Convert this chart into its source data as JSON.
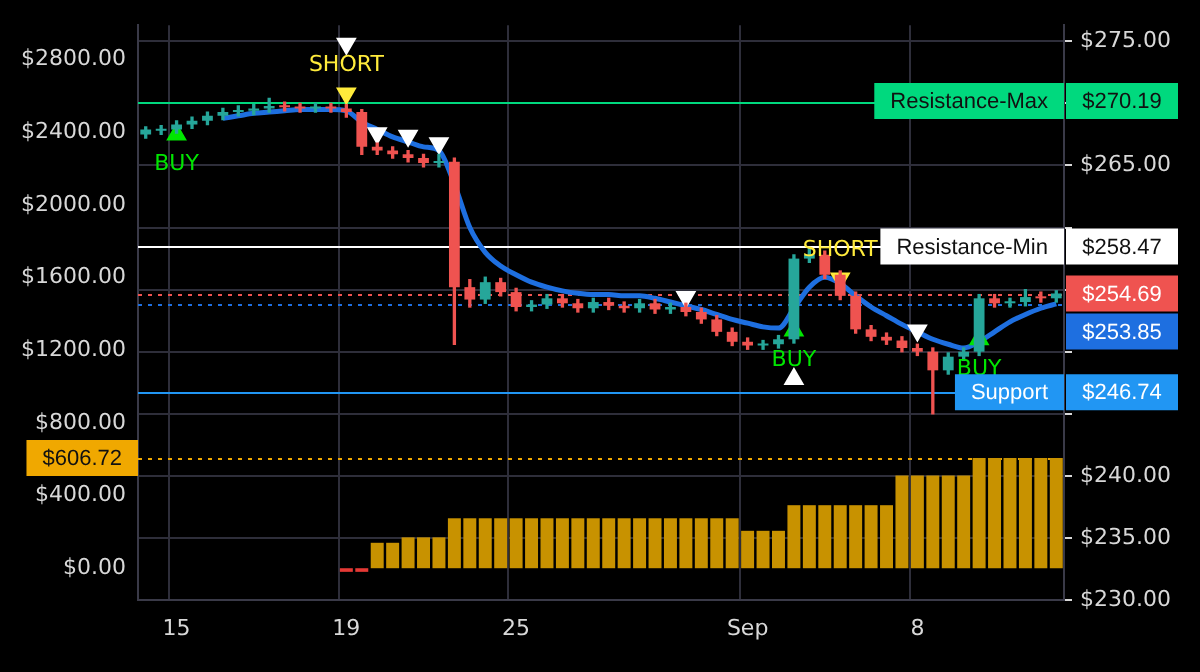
{
  "chart_data": {
    "type": "candlestick",
    "categories": [
      null,
      null,
      "15",
      null,
      null,
      null,
      null,
      null,
      null,
      null,
      null,
      null,
      null,
      "19",
      null,
      null,
      null,
      null,
      null,
      null,
      null,
      null,
      null,
      null,
      "25",
      null,
      null,
      null,
      null,
      null,
      null,
      null,
      null,
      null,
      null,
      null,
      null,
      null,
      null,
      "Sep",
      null,
      null,
      null,
      null,
      null,
      null,
      null,
      null,
      null,
      null,
      "8",
      null,
      null,
      null,
      null,
      null,
      null,
      null,
      null,
      null
    ],
    "series": [
      {
        "type": "bar",
        "axis": "y",
        "colors": [
          "#c89200",
          "#c89200",
          "#c89200",
          "#c89200",
          "#c89200",
          "#c89200",
          "#c89200",
          "#c89200",
          "#c89200",
          "#c89200",
          "#c89200",
          "#c89200",
          "#c89200",
          "#e53935",
          "#e53935",
          "#c89200",
          "#c89200",
          "#c89200",
          "#c89200",
          "#c89200",
          "#c89200",
          "#c89200",
          "#c89200",
          "#c89200",
          "#c89200",
          "#c89200",
          "#c89200",
          "#c89200",
          "#c89200",
          "#c89200",
          "#c89200",
          "#c89200",
          "#c89200",
          "#c89200",
          "#c89200",
          "#c89200",
          "#c89200",
          "#c89200",
          "#c89200",
          "#c89200",
          "#c89200",
          "#c89200",
          "#c89200",
          "#c89200",
          "#c89200",
          "#c89200",
          "#c89200",
          "#c89200",
          "#c89200",
          "#c89200",
          "#c89200",
          "#c89200",
          "#c89200",
          "#c89200",
          "#c89200",
          "#c89200",
          "#c89200",
          "#c89200",
          "#c89200",
          "#c89200"
        ],
        "values": [
          0,
          0,
          0,
          0,
          0,
          0,
          0,
          0,
          0,
          0,
          0,
          0,
          0,
          -20,
          -20,
          140,
          140,
          170,
          170,
          170,
          275,
          275,
          275,
          275,
          275,
          275,
          275,
          275,
          275,
          275,
          275,
          275,
          275,
          275,
          275,
          275,
          275,
          275,
          275,
          206,
          206,
          206,
          347,
          347,
          347,
          347,
          347,
          347,
          347,
          510,
          510,
          510,
          510,
          510,
          606.72,
          606.72,
          606.72,
          606.72,
          606.72,
          606.72
        ]
      },
      {
        "type": "line",
        "axis": "y2",
        "color": "#1e6fe0",
        "marker": "none",
        "values": [
          null,
          null,
          null,
          null,
          null,
          268.8,
          269.0,
          269.2,
          269.3,
          269.4,
          269.5,
          269.5,
          269.5,
          269.4,
          268.5,
          267.9,
          267.3,
          266.9,
          266.5,
          266.2,
          263.5,
          260.0,
          258.0,
          256.9,
          256.2,
          255.6,
          255.2,
          254.9,
          254.7,
          254.6,
          254.6,
          254.5,
          254.5,
          254.3,
          254.0,
          253.7,
          253.4,
          253.0,
          252.6,
          252.3,
          252.0,
          251.9,
          253.5,
          255.2,
          256.0,
          255.5,
          254.5,
          253.6,
          252.9,
          252.2,
          251.6,
          251.0,
          250.6,
          250.3,
          250.8,
          251.6,
          252.4,
          253.0,
          253.5,
          253.85
        ]
      },
      {
        "axis": "y2",
        "ohlc": [
          [
            267.5,
            268.1,
            267.2,
            267.9
          ],
          [
            267.8,
            268.2,
            267.5,
            267.9
          ],
          [
            267.9,
            268.6,
            267.6,
            268.3
          ],
          [
            268.3,
            268.9,
            268.0,
            268.6
          ],
          [
            268.6,
            269.3,
            268.3,
            269.0
          ],
          [
            269.0,
            269.6,
            268.7,
            269.3
          ],
          [
            269.3,
            269.8,
            269.0,
            269.4
          ],
          [
            269.4,
            269.9,
            269.1,
            269.6
          ],
          [
            269.6,
            270.4,
            269.3,
            269.8
          ],
          [
            269.8,
            270.1,
            269.4,
            269.7
          ],
          [
            269.7,
            270.0,
            269.3,
            269.6
          ],
          [
            269.6,
            270.0,
            269.3,
            269.7
          ],
          [
            269.7,
            270.0,
            269.3,
            269.6
          ],
          [
            269.6,
            269.9,
            268.9,
            269.3
          ],
          [
            269.3,
            269.5,
            265.9,
            266.5
          ],
          [
            266.5,
            266.8,
            265.9,
            266.2
          ],
          [
            266.2,
            266.5,
            265.6,
            265.9
          ],
          [
            265.9,
            266.2,
            265.3,
            265.6
          ],
          [
            265.6,
            265.9,
            264.9,
            265.2
          ],
          [
            265.2,
            265.9,
            264.9,
            265.3
          ],
          [
            265.3,
            265.6,
            250.6,
            255.2
          ],
          [
            255.2,
            255.8,
            253.6,
            254.2
          ],
          [
            254.2,
            256.0,
            253.9,
            255.6
          ],
          [
            255.6,
            255.9,
            254.5,
            254.8
          ],
          [
            254.8,
            255.1,
            253.3,
            253.6
          ],
          [
            253.6,
            254.1,
            253.3,
            253.8
          ],
          [
            253.8,
            254.6,
            253.5,
            254.3
          ],
          [
            254.3,
            254.6,
            253.6,
            253.9
          ],
          [
            253.9,
            254.2,
            253.2,
            253.5
          ],
          [
            253.5,
            254.3,
            253.2,
            254.0
          ],
          [
            254.0,
            254.3,
            253.4,
            253.7
          ],
          [
            253.7,
            254.0,
            253.2,
            253.5
          ],
          [
            253.5,
            254.2,
            253.2,
            253.9
          ],
          [
            253.9,
            254.2,
            253.1,
            253.4
          ],
          [
            253.4,
            253.9,
            253.1,
            253.6
          ],
          [
            253.6,
            253.9,
            252.9,
            253.2
          ],
          [
            253.2,
            253.5,
            252.3,
            252.6
          ],
          [
            252.6,
            252.9,
            251.3,
            251.6
          ],
          [
            251.6,
            251.9,
            250.5,
            250.8
          ],
          [
            250.8,
            251.1,
            250.2,
            250.5
          ],
          [
            250.5,
            250.9,
            250.2,
            250.6
          ],
          [
            250.6,
            251.3,
            250.3,
            251.0
          ],
          [
            251.0,
            257.8,
            250.7,
            257.5
          ],
          [
            257.5,
            258.3,
            257.2,
            257.8
          ],
          [
            257.8,
            258.1,
            255.9,
            256.2
          ],
          [
            256.2,
            256.5,
            254.2,
            254.5
          ],
          [
            254.5,
            254.8,
            251.5,
            251.8
          ],
          [
            251.8,
            252.1,
            250.9,
            251.2
          ],
          [
            251.2,
            251.5,
            250.6,
            250.9
          ],
          [
            250.9,
            251.2,
            250.0,
            250.3
          ],
          [
            250.3,
            250.6,
            249.7,
            250.0
          ],
          [
            250.0,
            250.3,
            245.0,
            248.5
          ],
          [
            248.5,
            249.9,
            248.2,
            249.6
          ],
          [
            249.6,
            250.3,
            249.3,
            250.0
          ],
          [
            250.0,
            254.6,
            249.7,
            254.3
          ],
          [
            254.3,
            254.6,
            253.6,
            253.9
          ],
          [
            253.9,
            254.3,
            253.6,
            254.0
          ],
          [
            254.0,
            255.0,
            253.7,
            254.4
          ],
          [
            254.4,
            254.8,
            254.0,
            254.3
          ],
          [
            254.3,
            254.9,
            254.0,
            254.69
          ]
        ]
      },
      {
        "type": "scatter",
        "axis": "y2",
        "color": "#00e600",
        "marker": "triangle",
        "values": [
          null,
          null,
          267.5,
          null,
          null,
          null,
          null,
          null,
          null,
          null,
          null,
          null,
          null,
          null,
          null,
          null,
          null,
          null,
          null,
          null,
          null,
          null,
          null,
          null,
          null,
          null,
          null,
          null,
          null,
          null,
          null,
          null,
          null,
          null,
          null,
          null,
          null,
          null,
          null,
          null,
          null,
          null,
          251.7,
          null,
          null,
          null,
          null,
          null,
          null,
          null,
          null,
          null,
          null,
          null,
          251.0,
          null,
          null,
          null,
          null,
          null
        ],
        "value_labels": [
          null,
          null,
          "BUY",
          null,
          null,
          null,
          null,
          null,
          null,
          null,
          null,
          null,
          null,
          null,
          null,
          null,
          null,
          null,
          null,
          null,
          null,
          null,
          null,
          null,
          null,
          null,
          null,
          null,
          null,
          null,
          null,
          null,
          null,
          null,
          null,
          null,
          null,
          null,
          null,
          null,
          null,
          null,
          "BUY",
          null,
          null,
          null,
          null,
          null,
          null,
          null,
          null,
          null,
          null,
          null,
          "BUY",
          null,
          null,
          null,
          null,
          null
        ]
      },
      {
        "type": "scatter",
        "axis": "y2",
        "color": "#ffeb3b",
        "marker": "triangle",
        "values": [
          null,
          null,
          null,
          null,
          null,
          null,
          null,
          null,
          null,
          null,
          null,
          null,
          null,
          270.8,
          null,
          null,
          null,
          null,
          null,
          null,
          null,
          null,
          null,
          null,
          null,
          null,
          null,
          null,
          null,
          null,
          null,
          null,
          null,
          null,
          null,
          null,
          null,
          null,
          null,
          null,
          null,
          null,
          null,
          null,
          null,
          255.9,
          null,
          null,
          null,
          null,
          null,
          null,
          null,
          null,
          null,
          null,
          null,
          null,
          null,
          null
        ],
        "value_labels": [
          null,
          null,
          null,
          null,
          null,
          null,
          null,
          null,
          null,
          null,
          null,
          null,
          null,
          "SHORT",
          null,
          null,
          null,
          null,
          null,
          null,
          null,
          null,
          null,
          null,
          null,
          null,
          null,
          null,
          null,
          null,
          null,
          null,
          null,
          null,
          null,
          null,
          null,
          null,
          null,
          null,
          null,
          null,
          null,
          null,
          null,
          "SHORT",
          null,
          null,
          null,
          null,
          null,
          null,
          null,
          null,
          null,
          null,
          null,
          null,
          null,
          null
        ]
      },
      {
        "type": "scatter",
        "axis": "y2",
        "color": "#ffffff",
        "marker": "triangle",
        "values": [
          null,
          null,
          null,
          null,
          null,
          null,
          null,
          null,
          null,
          null,
          null,
          null,
          null,
          274.8,
          null,
          267.6,
          null,
          267.4,
          null,
          266.8,
          null,
          null,
          null,
          null,
          null,
          null,
          null,
          null,
          null,
          null,
          null,
          null,
          null,
          null,
          null,
          254.4,
          null,
          null,
          null,
          null,
          null,
          null,
          247.8,
          null,
          null,
          null,
          null,
          null,
          null,
          null,
          251.7,
          null,
          null,
          null,
          null,
          null,
          null,
          null,
          null,
          null
        ]
      }
    ],
    "ylim": [
      -175,
      2990
    ],
    "yticks": [
      {
        "value": 0,
        "label": "$0.00"
      },
      {
        "value": 400,
        "label": "$400.00"
      },
      {
        "value": 800,
        "label": "$800.00"
      },
      {
        "value": 1200,
        "label": "$1200.00"
      },
      {
        "value": 1600,
        "label": "$1600.00"
      },
      {
        "value": 2000,
        "label": "$2000.00"
      },
      {
        "value": 2400,
        "label": "$2400.00"
      },
      {
        "value": 2800,
        "label": "$2800.00"
      }
    ],
    "y2lim": [
      230,
      276.3
    ],
    "y2ticks": [
      {
        "value": 230,
        "label": "$230.00"
      },
      {
        "value": 235,
        "label": "$235.00"
      },
      {
        "value": 240,
        "label": "$240.00"
      },
      {
        "value": 245,
        "label": null
      },
      {
        "value": 250,
        "label": null
      },
      {
        "value": 255,
        "label": null
      },
      {
        "value": 260,
        "label": null
      },
      {
        "value": 265,
        "label": "$265.00"
      },
      {
        "value": 270,
        "label": null
      },
      {
        "value": 275,
        "label": "$275.00"
      }
    ],
    "grid": true,
    "ref_lines": [
      {
        "axis": "y2",
        "value": 270.19,
        "label": "Resistance-Max",
        "color": "#00d97e",
        "line_style": "solid"
      },
      {
        "axis": "y2",
        "value": 258.47,
        "label": "Resistance-Min",
        "color": "#ffffff",
        "line_style": "solid"
      },
      {
        "axis": "y2",
        "value": 246.74,
        "label": "Support",
        "color": "#2196f3",
        "line_style": "solid"
      },
      {
        "axis": "y2",
        "value": 254.69,
        "color": "#ef5350",
        "line_style": "dotted"
      },
      {
        "axis": "y2",
        "value": 253.85,
        "color": "#1e6fe0",
        "line_style": "dotted"
      },
      {
        "axis": "y",
        "value": 606.72,
        "label": "$606.72",
        "color": "#f0a800",
        "line_style": "dotted"
      }
    ],
    "annotations": [
      "$270.19",
      "$258.47",
      "$246.74",
      "$254.69",
      "$253.85"
    ]
  }
}
